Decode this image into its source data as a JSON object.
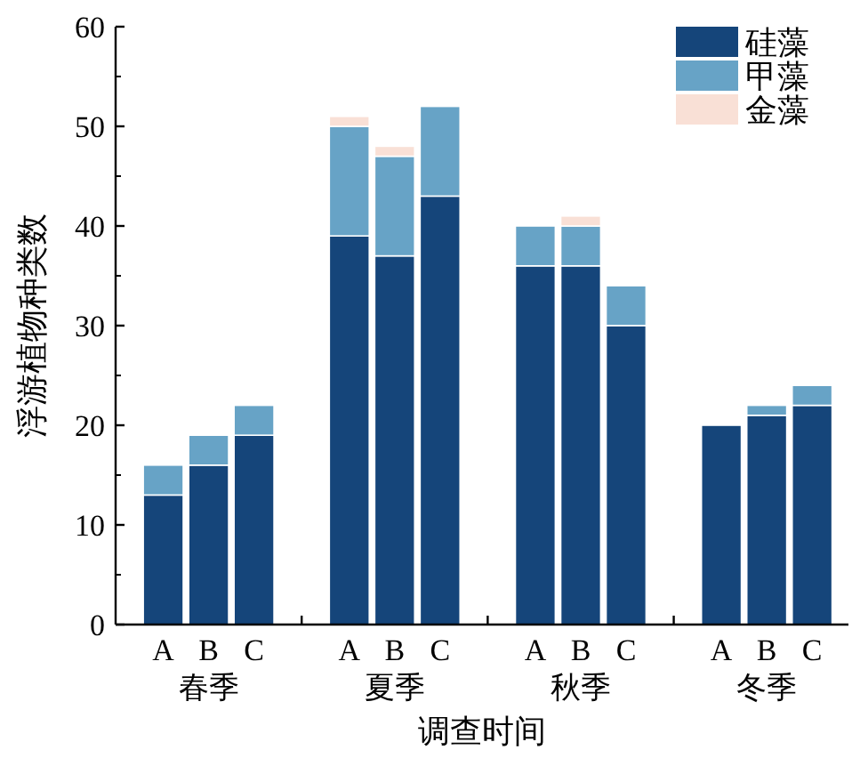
{
  "chart_data": {
    "type": "bar",
    "stacked": true,
    "xlabel": "调查时间",
    "ylabel": "浮游植物种类数",
    "categories": [
      "A",
      "B",
      "C",
      "A",
      "B",
      "C",
      "A",
      "B",
      "C",
      "A",
      "B",
      "C"
    ],
    "annotations": [
      "春季",
      "夏季",
      "秋季",
      "冬季"
    ],
    "series": [
      {
        "name": "硅藻",
        "color": "#15457a",
        "values": [
          13,
          16,
          19,
          39,
          37,
          43,
          36,
          36,
          30,
          20,
          21,
          22
        ]
      },
      {
        "name": "甲藻",
        "color": "#67a3c6",
        "values": [
          3,
          3,
          3,
          11,
          10,
          9,
          4,
          4,
          4,
          0,
          1,
          2
        ]
      },
      {
        "name": "金藻",
        "color": "#f9e0d6",
        "values": [
          null,
          null,
          null,
          1,
          1,
          null,
          null,
          1,
          null,
          null,
          null,
          null
        ]
      }
    ],
    "ylim": [
      0,
      60
    ],
    "yticks": [
      0,
      10,
      20,
      30,
      40,
      50,
      60
    ],
    "grid": false,
    "legend": "top right"
  }
}
